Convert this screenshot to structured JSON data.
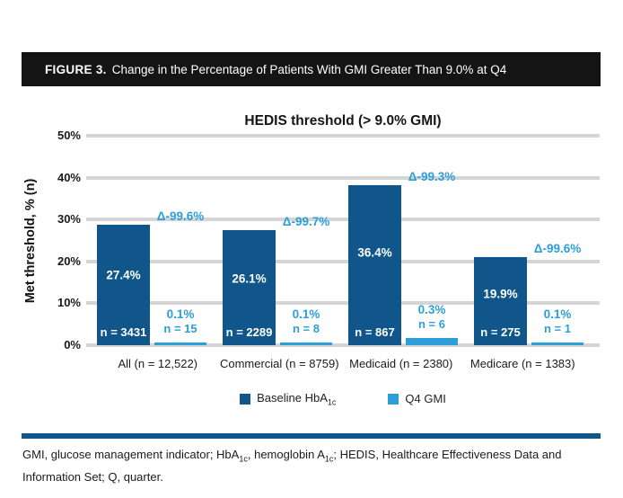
{
  "figure_caption": {
    "label": "FIGURE 3.",
    "text": "Change in the Percentage of Patients With GMI Greater Than 9.0% at Q4"
  },
  "chart_data": {
    "type": "bar",
    "title": "HEDIS threshold (> 9.0% GMI)",
    "ylabel": "Met threshold, % (n)",
    "ylim": [
      0,
      50
    ],
    "ytick_labels": [
      "50%",
      "40%",
      "30%",
      "20%",
      "10%",
      "0%"
    ],
    "grid": true,
    "legend_position": "bottom",
    "categories": [
      "All (n = 12,522)",
      "Commercial (n = 8759)",
      "Medicaid (n = 2380)",
      "Medicare (n = 1383)"
    ],
    "series": [
      {
        "name": "Baseline HbA1c",
        "name_html": "Baseline HbA<sub>1c</sub>",
        "color": "#10568B",
        "values": [
          27.4,
          26.1,
          36.4,
          19.9
        ],
        "value_labels": [
          "27.4%",
          "26.1%",
          "36.4%",
          "19.9%"
        ],
        "n_labels": [
          "n = 3431",
          "n = 2289",
          "n = 867",
          "n = 275"
        ]
      },
      {
        "name": "Q4 GMI",
        "name_html": "Q4 GMI",
        "color": "#2E9ED8",
        "values": [
          0.1,
          0.1,
          0.3,
          0.1
        ],
        "value_labels": [
          "0.1%",
          "0.1%",
          "0.3%",
          "0.1%"
        ],
        "n_labels": [
          "n = 15",
          "n = 8",
          "n = 6",
          "n = 1"
        ]
      }
    ],
    "delta_labels": [
      "Δ-99.6%",
      "Δ-99.7%",
      "Δ-99.3%",
      "Δ-99.6%"
    ]
  },
  "footnote": {
    "line1": "GMI, glucose management indicator; HbA<sub>1c</sub>, hemoglobin A<sub>1c</sub>; HEDIS, Healthcare Effectiveness Data and",
    "line2": "Information Set; Q, quarter."
  },
  "colors": {
    "caption_bar_bg": "#141414",
    "primary_blue": "#10568B",
    "secondary_blue": "#2E9ED8",
    "gridline": "#D5D5D5"
  }
}
